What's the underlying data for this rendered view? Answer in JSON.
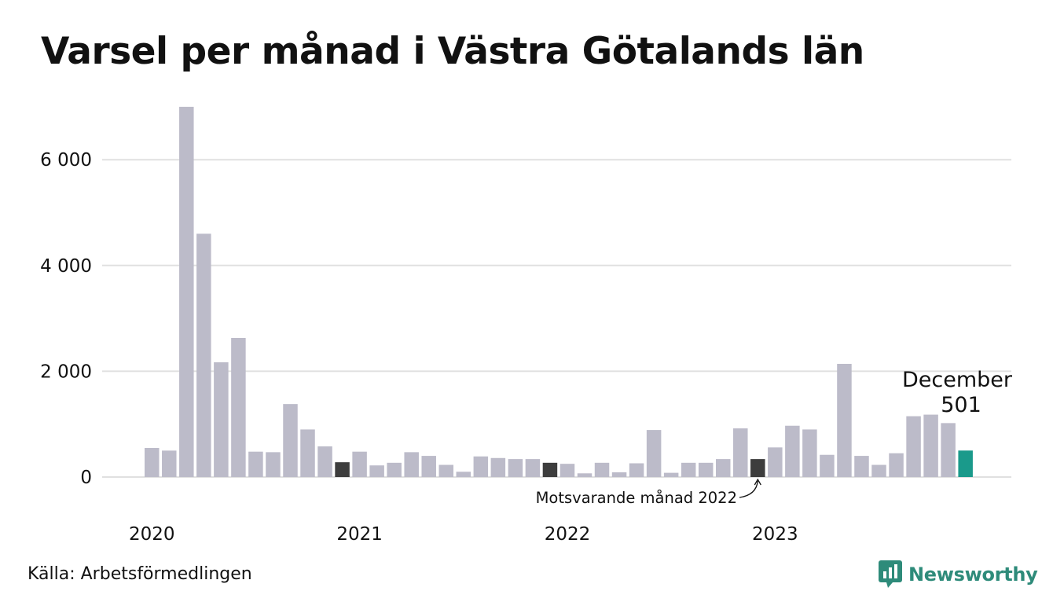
{
  "title": "Varsel per månad i Västra Götalands län",
  "source": "Källa: Arbetsförmedlingen",
  "logo": {
    "text": "Newsworthy",
    "icon": "newsworthy-logo-icon",
    "color": "#2e8b7a"
  },
  "colors": {
    "bar": "#bcbbc9",
    "comparison": "#3d3d3d",
    "highlight": "#1a9a8b",
    "grid": "#e0e0e0"
  },
  "chart_data": {
    "type": "bar",
    "title": "Varsel per månad i Västra Götalands län",
    "xlabel": "",
    "ylabel": "",
    "ylim": [
      0,
      7000
    ],
    "yticks": [
      {
        "value": 0,
        "label": "0"
      },
      {
        "value": 2000,
        "label": "2 000"
      },
      {
        "value": 4000,
        "label": "4 000"
      },
      {
        "value": 6000,
        "label": "6 000"
      }
    ],
    "grid": true,
    "year_labels": [
      {
        "label": "2020",
        "month_index": 0
      },
      {
        "label": "2021",
        "month_index": 12
      },
      {
        "label": "2022",
        "month_index": 24
      },
      {
        "label": "2023",
        "month_index": 36
      }
    ],
    "categories": [
      "2020-01",
      "2020-02",
      "2020-03",
      "2020-04",
      "2020-05",
      "2020-06",
      "2020-07",
      "2020-08",
      "2020-09",
      "2020-10",
      "2020-11",
      "2020-12",
      "2021-01",
      "2021-02",
      "2021-03",
      "2021-04",
      "2021-05",
      "2021-06",
      "2021-07",
      "2021-08",
      "2021-09",
      "2021-10",
      "2021-11",
      "2021-12",
      "2022-01",
      "2022-02",
      "2022-03",
      "2022-04",
      "2022-05",
      "2022-06",
      "2022-07",
      "2022-08",
      "2022-09",
      "2022-10",
      "2022-11",
      "2022-12",
      "2023-01",
      "2023-02",
      "2023-03",
      "2023-04",
      "2023-05",
      "2023-06",
      "2023-07",
      "2023-08",
      "2023-09",
      "2023-10",
      "2023-11",
      "2023-12"
    ],
    "values": [
      550,
      500,
      7000,
      4600,
      2170,
      2630,
      480,
      470,
      1380,
      900,
      580,
      280,
      480,
      220,
      270,
      470,
      400,
      230,
      100,
      390,
      360,
      340,
      340,
      270,
      250,
      70,
      270,
      90,
      260,
      890,
      80,
      270,
      270,
      340,
      920,
      340,
      560,
      970,
      900,
      420,
      2140,
      400,
      230,
      450,
      1150,
      1180,
      1020,
      501
    ],
    "comparison_indices": [
      11,
      23,
      35
    ],
    "highlight_index": 47,
    "annotations": [
      {
        "text": "December",
        "target_index": 47
      },
      {
        "text": "501",
        "target_index": 47
      },
      {
        "text": "Motsvarande månad 2022",
        "target_index": 35
      }
    ]
  }
}
